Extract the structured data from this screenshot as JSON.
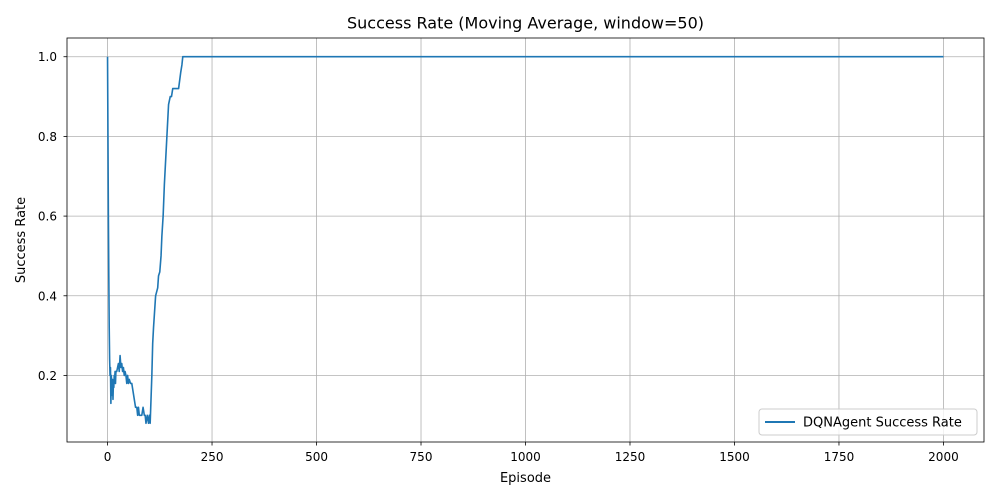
{
  "chart_data": {
    "type": "line",
    "title": "Success Rate (Moving Average, window=50)",
    "xlabel": "Episode",
    "ylabel": "Success Rate",
    "xlim": [
      -97,
      2097
    ],
    "ylim": [
      0.033,
      1.047
    ],
    "xticks": [
      0,
      250,
      500,
      750,
      1000,
      1250,
      1500,
      1750,
      2000
    ],
    "yticks": [
      0.2,
      0.4,
      0.6,
      0.8,
      1.0
    ],
    "xtick_labels": [
      "0",
      "250",
      "500",
      "750",
      "1000",
      "1250",
      "1500",
      "1750",
      "2000"
    ],
    "ytick_labels": [
      "0.2",
      "0.4",
      "0.6",
      "0.8",
      "1.0"
    ],
    "grid": true,
    "legend_position": "lower right",
    "series": [
      {
        "name": "DQNAgent Success Rate",
        "color": "#1f77b4",
        "x": [
          0,
          1,
          2,
          3,
          4,
          5,
          6,
          7,
          8,
          9,
          10,
          11,
          12,
          13,
          14,
          15,
          16,
          17,
          18,
          19,
          20,
          22,
          24,
          26,
          28,
          30,
          32,
          34,
          36,
          38,
          40,
          42,
          44,
          46,
          48,
          50,
          52,
          55,
          58,
          61,
          64,
          67,
          70,
          72,
          74,
          76,
          78,
          80,
          82,
          85,
          88,
          90,
          92,
          95,
          98,
          100,
          102,
          104,
          106,
          108,
          110,
          115,
          120,
          122,
          125,
          128,
          130,
          133,
          136,
          140,
          143,
          146,
          150,
          153,
          156,
          160,
          165,
          170,
          175,
          178,
          180,
          200,
          500,
          1000,
          1500,
          2000
        ],
        "y": [
          1.0,
          0.8,
          0.6,
          0.45,
          0.32,
          0.24,
          0.2,
          0.22,
          0.13,
          0.2,
          0.18,
          0.15,
          0.19,
          0.14,
          0.18,
          0.17,
          0.2,
          0.19,
          0.21,
          0.18,
          0.21,
          0.21,
          0.22,
          0.23,
          0.21,
          0.25,
          0.22,
          0.23,
          0.21,
          0.22,
          0.2,
          0.21,
          0.2,
          0.18,
          0.2,
          0.18,
          0.19,
          0.18,
          0.18,
          0.16,
          0.14,
          0.12,
          0.12,
          0.1,
          0.12,
          0.1,
          0.1,
          0.1,
          0.1,
          0.12,
          0.1,
          0.1,
          0.08,
          0.1,
          0.08,
          0.1,
          0.08,
          0.14,
          0.2,
          0.28,
          0.32,
          0.4,
          0.42,
          0.45,
          0.46,
          0.5,
          0.55,
          0.6,
          0.68,
          0.76,
          0.82,
          0.88,
          0.9,
          0.9,
          0.92,
          0.92,
          0.92,
          0.92,
          0.96,
          0.98,
          1.0,
          1.0,
          1.0,
          1.0,
          1.0,
          1.0
        ]
      }
    ]
  }
}
